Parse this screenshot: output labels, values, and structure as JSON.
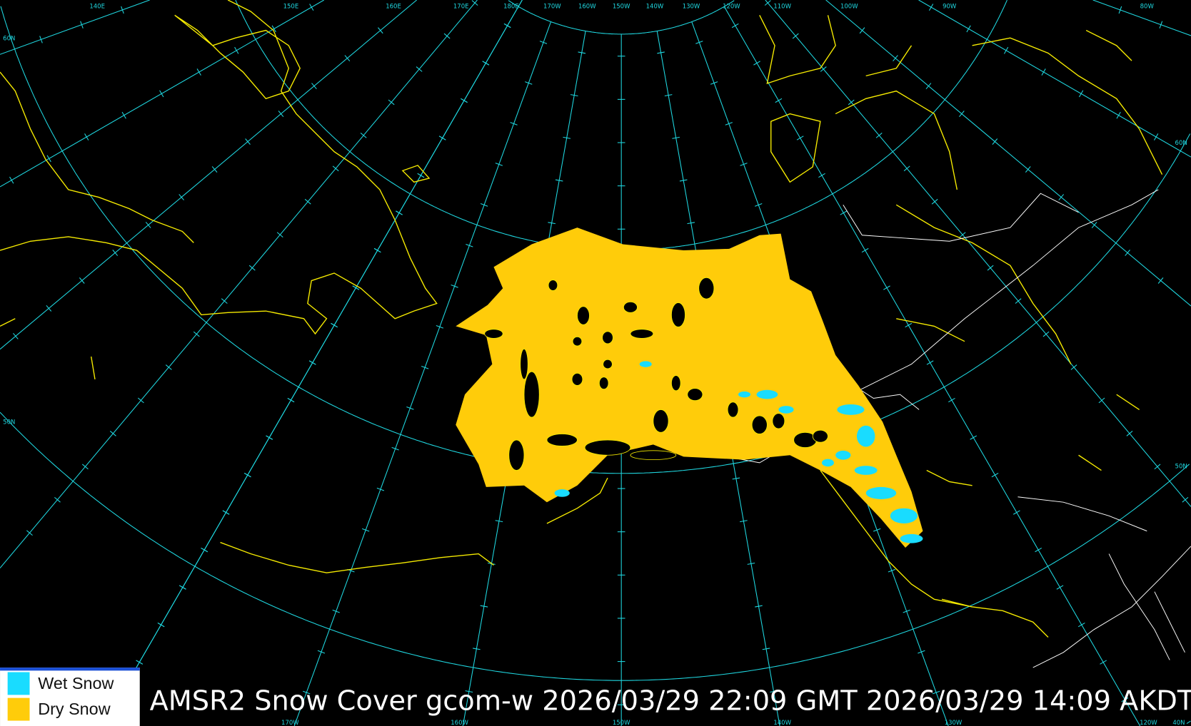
{
  "title": "AMSR2 Snow Cover gcom-w 2026/03/29 22:09 GMT 2026/03/29 14:09 AKDT",
  "legend": {
    "items": [
      {
        "label": "Wet Snow",
        "color": "#19dcff"
      },
      {
        "label": "Dry Snow",
        "color": "#ffcc0a"
      }
    ],
    "accent": "#1a4fd6"
  },
  "colors": {
    "coastline": "#f5ea00",
    "graticule": "#1fd7e0",
    "borders": "#ffffff",
    "background": "#000000"
  },
  "graticule": {
    "top_labels": [
      "140E",
      "150E",
      "160E",
      "170E",
      "180E",
      "170W",
      "160W",
      "150W",
      "140W",
      "130W",
      "120W",
      "110W",
      "100W",
      "90W",
      "80W"
    ],
    "left_labels": [
      "60N",
      "50N"
    ],
    "right_labels": [
      "60N",
      "50N"
    ],
    "bottom_labels": [
      "170W",
      "160W",
      "150W",
      "140W",
      "130W",
      "120W",
      "40N"
    ]
  }
}
